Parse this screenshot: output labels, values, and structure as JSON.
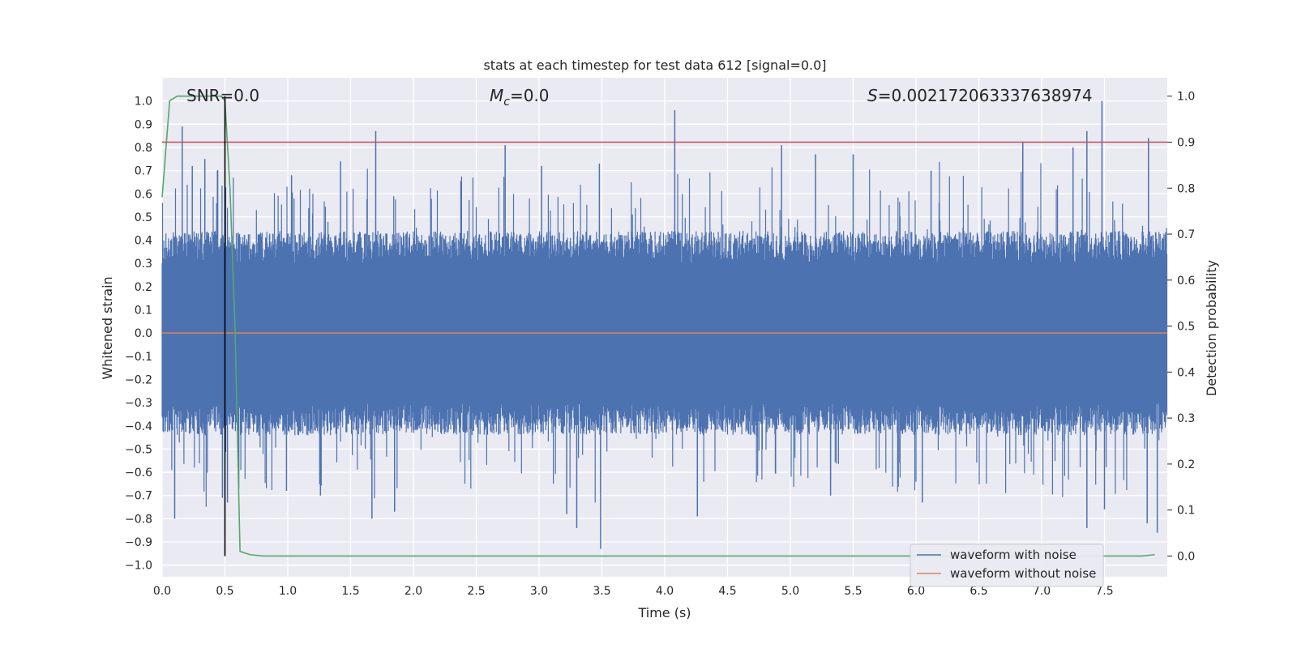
{
  "chart_data": {
    "type": "line",
    "title": "stats at each timestep for test data 612 [signal=0.0]",
    "xlabel": "Time (s)",
    "ylabel_left": "Whitened strain",
    "ylabel_right": "Detection probability",
    "xlim": [
      0.0,
      8.0
    ],
    "ylim_left": [
      -1.05,
      1.1
    ],
    "ylim_right": [
      -0.045,
      1.04
    ],
    "x_ticks": [
      "0.0",
      "0.5",
      "1.0",
      "1.5",
      "2.0",
      "2.5",
      "3.0",
      "3.5",
      "4.0",
      "4.5",
      "5.0",
      "5.5",
      "6.0",
      "6.5",
      "7.0",
      "7.5"
    ],
    "left_ticks": [
      "−1.0",
      "−0.9",
      "−0.8",
      "−0.7",
      "−0.6",
      "−0.5",
      "−0.4",
      "−0.3",
      "−0.2",
      "−0.1",
      "0.0",
      "0.1",
      "0.2",
      "0.3",
      "0.4",
      "0.5",
      "0.6",
      "0.7",
      "0.8",
      "0.9",
      "1.0"
    ],
    "right_ticks": [
      "0.0",
      "0.1",
      "0.2",
      "0.3",
      "0.4",
      "0.5",
      "0.6",
      "0.7",
      "0.8",
      "0.9",
      "1.0"
    ],
    "grid": true,
    "annotations": {
      "snr": "SNR=0.0",
      "mc_symbol": "M",
      "mc_sub": "c",
      "mc_value": "=0.0",
      "s_symbol": "S",
      "s_value": "=0.002172063337638974"
    },
    "legend": {
      "position": "lower-right",
      "entries": [
        {
          "label": "waveform with noise",
          "color": "#4c72b0"
        },
        {
          "label": "waveform without noise",
          "color": "#dd8452"
        }
      ]
    },
    "series": [
      {
        "name": "waveform with noise",
        "color": "#4c72b0",
        "axis": "left",
        "description": "dense whitened noise, typical envelope about ±0.4, peaks near ±1.0",
        "peaks": [
          {
            "x": 0.16,
            "y": 0.89
          },
          {
            "x": 0.24,
            "y": 0.72
          },
          {
            "x": 0.34,
            "y": 0.75
          },
          {
            "x": 0.44,
            "y": 0.7
          },
          {
            "x": 1.03,
            "y": 0.68
          },
          {
            "x": 1.42,
            "y": 0.74
          },
          {
            "x": 1.7,
            "y": 0.87
          },
          {
            "x": 2.73,
            "y": 0.81
          },
          {
            "x": 3.02,
            "y": 0.72
          },
          {
            "x": 3.48,
            "y": 0.73
          },
          {
            "x": 4.08,
            "y": 0.96
          },
          {
            "x": 4.93,
            "y": 0.81
          },
          {
            "x": 5.2,
            "y": 0.77
          },
          {
            "x": 5.5,
            "y": 0.77
          },
          {
            "x": 6.12,
            "y": 0.7
          },
          {
            "x": 6.85,
            "y": 0.82
          },
          {
            "x": 7.25,
            "y": 0.8
          },
          {
            "x": 7.36,
            "y": 0.87
          },
          {
            "x": 7.48,
            "y": 1.0
          },
          {
            "x": 7.85,
            "y": 0.84
          },
          {
            "x": 0.1,
            "y": -0.8
          },
          {
            "x": 0.48,
            "y": -0.71
          },
          {
            "x": 0.52,
            "y": -0.73
          },
          {
            "x": 0.61,
            "y": -0.67
          },
          {
            "x": 0.99,
            "y": -0.68
          },
          {
            "x": 1.26,
            "y": -0.7
          },
          {
            "x": 1.67,
            "y": -0.8
          },
          {
            "x": 1.85,
            "y": -0.77
          },
          {
            "x": 3.22,
            "y": -0.78
          },
          {
            "x": 3.3,
            "y": -0.84
          },
          {
            "x": 3.49,
            "y": -0.93
          },
          {
            "x": 4.26,
            "y": -0.79
          },
          {
            "x": 5.32,
            "y": -0.7
          },
          {
            "x": 6.05,
            "y": -0.73
          },
          {
            "x": 7.36,
            "y": -0.84
          },
          {
            "x": 7.5,
            "y": -0.76
          },
          {
            "x": 7.84,
            "y": -0.82
          },
          {
            "x": 7.92,
            "y": -0.86
          }
        ]
      },
      {
        "name": "waveform without noise",
        "color": "#dd8452",
        "axis": "left",
        "x": [
          0.0,
          8.0
        ],
        "y": [
          0.0,
          0.0
        ]
      },
      {
        "name": "detection probability",
        "color": "#55a868",
        "axis": "right",
        "x": [
          0.0,
          0.06,
          0.12,
          0.2,
          0.3,
          0.4,
          0.47,
          0.5,
          0.54,
          0.58,
          0.62,
          0.7,
          0.8,
          1.5,
          3.0,
          5.0,
          7.0,
          7.8,
          7.9
        ],
        "y": [
          0.78,
          0.99,
          1.0,
          1.0,
          1.0,
          1.0,
          1.0,
          0.99,
          0.8,
          0.5,
          0.01,
          0.003,
          0.0,
          0.0,
          0.0,
          0.0,
          0.0,
          0.0,
          0.003
        ]
      }
    ],
    "threshold": {
      "axis": "right",
      "y": 0.9,
      "color": "#c44e52"
    },
    "marker_line": {
      "x": 0.5,
      "color": "#000000"
    }
  }
}
